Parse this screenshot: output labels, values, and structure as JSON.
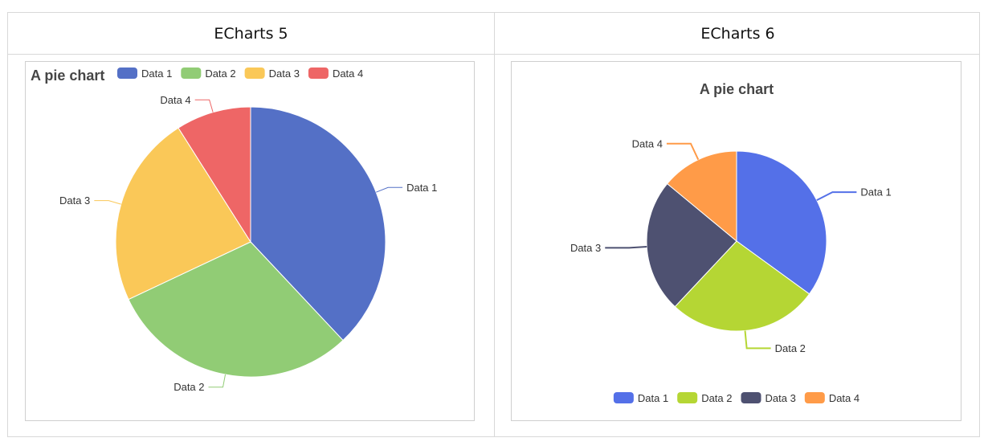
{
  "columns": [
    {
      "title": "ECharts 5"
    },
    {
      "title": "ECharts 6"
    }
  ],
  "charts": [
    {
      "title": "A pie chart",
      "legend_position": "top",
      "colors": [
        "#5470c6",
        "#91cc75",
        "#fac858",
        "#ee6666"
      ]
    },
    {
      "title": "A pie chart",
      "legend_position": "bottom",
      "colors": [
        "#5470e8",
        "#b5d634",
        "#4e5171",
        "#ff9b48"
      ]
    }
  ],
  "chart_data": [
    {
      "type": "pie",
      "title": "A pie chart",
      "categories": [
        "Data 1",
        "Data 2",
        "Data 3",
        "Data 4"
      ],
      "values": [
        38,
        30,
        23,
        9
      ]
    },
    {
      "type": "pie",
      "title": "A pie chart",
      "categories": [
        "Data 1",
        "Data 2",
        "Data 3",
        "Data 4"
      ],
      "values": [
        35,
        27,
        24,
        14
      ]
    }
  ]
}
